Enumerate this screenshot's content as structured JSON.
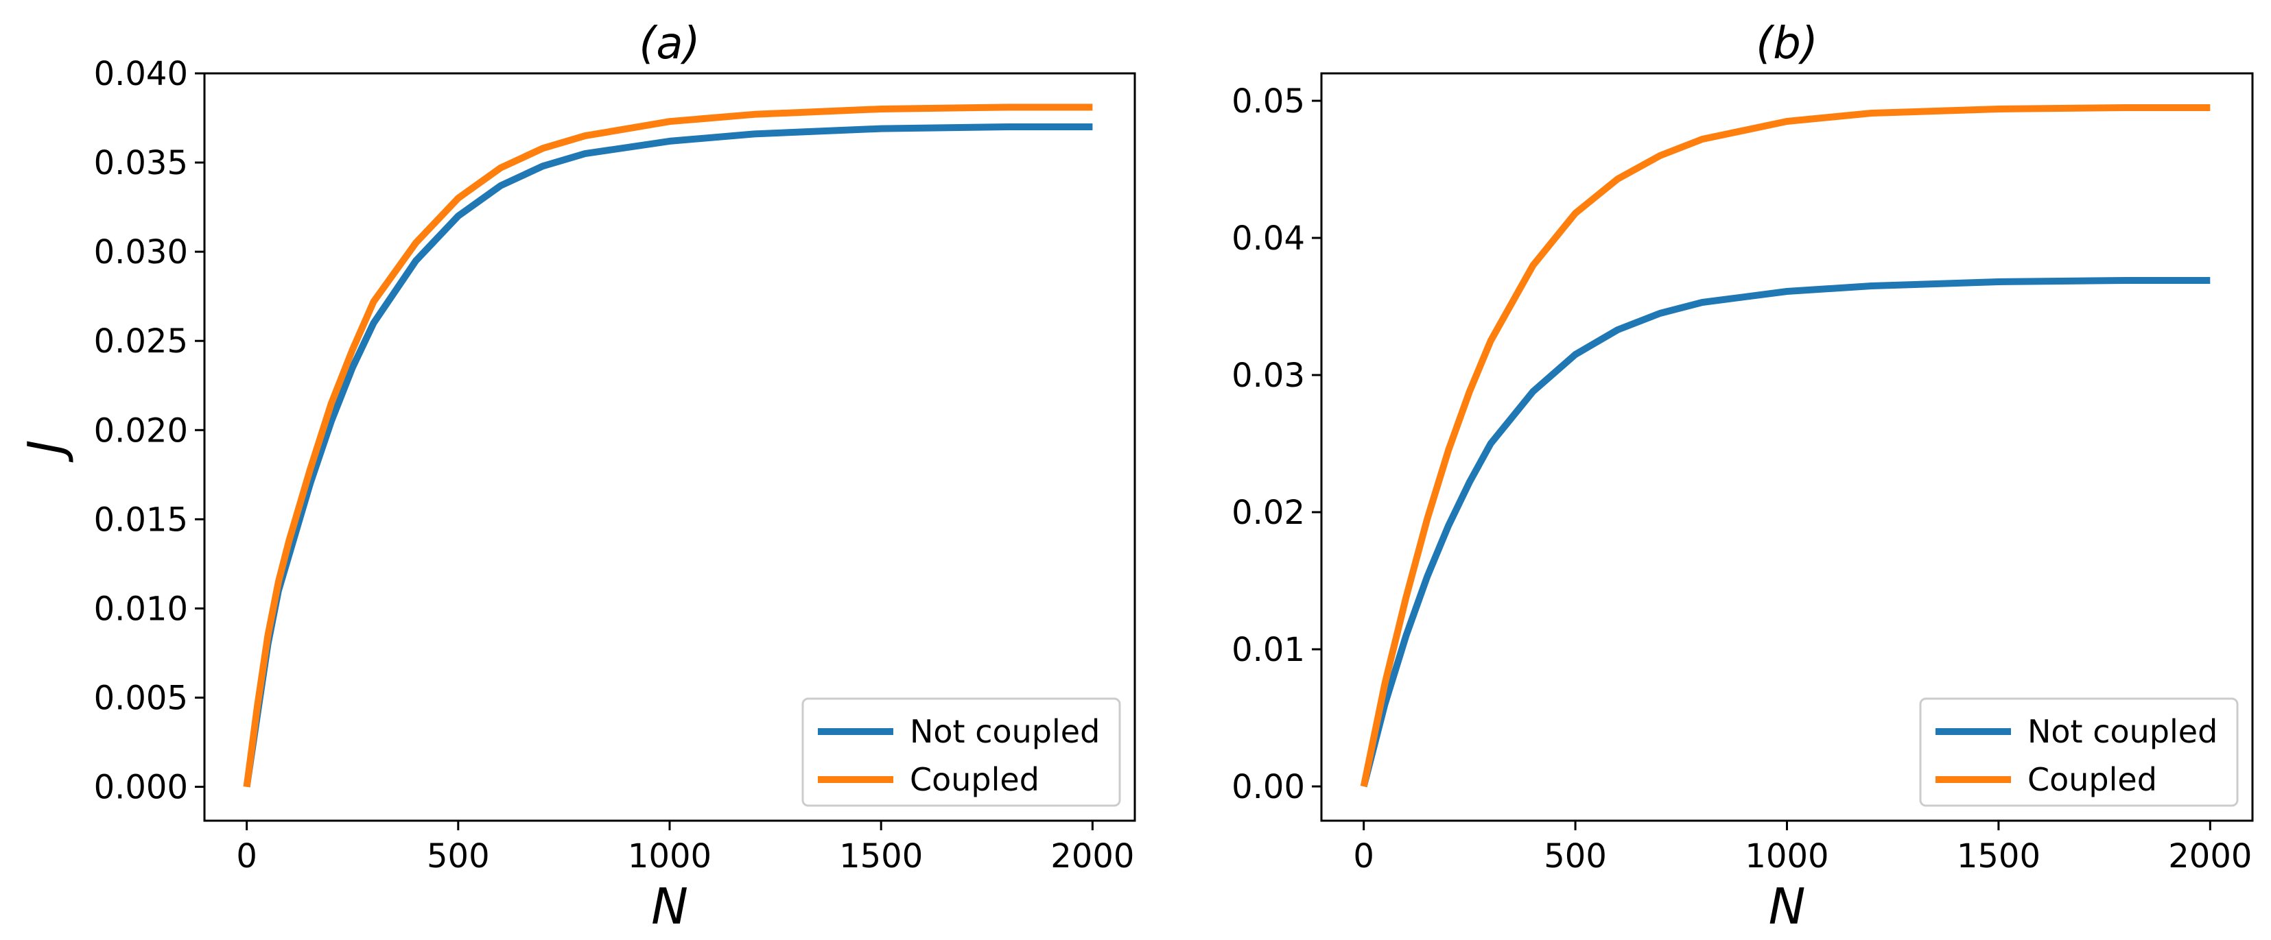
{
  "chart_data": [
    {
      "type": "line",
      "title": "(a)",
      "xlabel": "N",
      "ylabel": "J",
      "xlim": [
        -100,
        2100
      ],
      "ylim": [
        -0.0019,
        0.04
      ],
      "xticks": [
        0,
        500,
        1000,
        1500,
        2000
      ],
      "xtick_labels": [
        "0",
        "500",
        "1000",
        "1500",
        "2000"
      ],
      "yticks": [
        0.0,
        0.005,
        0.01,
        0.015,
        0.02,
        0.025,
        0.03,
        0.035,
        0.04
      ],
      "ytick_labels": [
        "0.000",
        "0.005",
        "0.010",
        "0.015",
        "0.020",
        "0.025",
        "0.030",
        "0.035",
        "0.040"
      ],
      "legend": "lower-right",
      "series": [
        {
          "name": "Not coupled",
          "color": "#1f77b4",
          "x": [
            0,
            25,
            50,
            75,
            100,
            150,
            200,
            250,
            300,
            400,
            500,
            600,
            700,
            800,
            1000,
            1200,
            1500,
            1800,
            2000
          ],
          "y": [
            0.0,
            0.004,
            0.008,
            0.011,
            0.013,
            0.017,
            0.0205,
            0.0235,
            0.026,
            0.0295,
            0.032,
            0.0337,
            0.0348,
            0.0355,
            0.0362,
            0.0366,
            0.0369,
            0.037,
            0.037
          ]
        },
        {
          "name": "Coupled",
          "color": "#ff7f0e",
          "x": [
            0,
            25,
            50,
            75,
            100,
            150,
            200,
            250,
            300,
            400,
            500,
            600,
            700,
            800,
            1000,
            1200,
            1500,
            1800,
            2000
          ],
          "y": [
            0.0,
            0.0045,
            0.0085,
            0.0115,
            0.0138,
            0.0178,
            0.0215,
            0.0245,
            0.0272,
            0.0305,
            0.033,
            0.0347,
            0.0358,
            0.0365,
            0.0373,
            0.0377,
            0.038,
            0.0381,
            0.0381
          ]
        }
      ]
    },
    {
      "type": "line",
      "title": "(b)",
      "xlabel": "N",
      "ylabel": "",
      "xlim": [
        -100,
        2100
      ],
      "ylim": [
        -0.0025,
        0.052
      ],
      "xticks": [
        0,
        500,
        1000,
        1500,
        2000
      ],
      "xtick_labels": [
        "0",
        "500",
        "1000",
        "1500",
        "2000"
      ],
      "yticks": [
        0.0,
        0.01,
        0.02,
        0.03,
        0.04,
        0.05
      ],
      "ytick_labels": [
        "0.00",
        "0.01",
        "0.02",
        "0.03",
        "0.04",
        "0.05"
      ],
      "legend": "lower-right",
      "series": [
        {
          "name": "Not coupled",
          "color": "#1f77b4",
          "x": [
            0,
            50,
            100,
            150,
            200,
            250,
            300,
            400,
            500,
            600,
            700,
            800,
            1000,
            1200,
            1500,
            1800,
            2000
          ],
          "y": [
            0.0,
            0.006,
            0.011,
            0.0153,
            0.019,
            0.0222,
            0.025,
            0.0288,
            0.0315,
            0.0333,
            0.0345,
            0.0353,
            0.0361,
            0.0365,
            0.0368,
            0.0369,
            0.0369
          ]
        },
        {
          "name": "Coupled",
          "color": "#ff7f0e",
          "x": [
            0,
            50,
            100,
            150,
            200,
            250,
            300,
            400,
            500,
            600,
            700,
            800,
            1000,
            1200,
            1500,
            1800,
            2000
          ],
          "y": [
            0.0,
            0.0075,
            0.0138,
            0.0195,
            0.0245,
            0.0288,
            0.0325,
            0.038,
            0.0418,
            0.0443,
            0.046,
            0.0472,
            0.0485,
            0.0491,
            0.0494,
            0.0495,
            0.0495
          ]
        }
      ]
    }
  ]
}
